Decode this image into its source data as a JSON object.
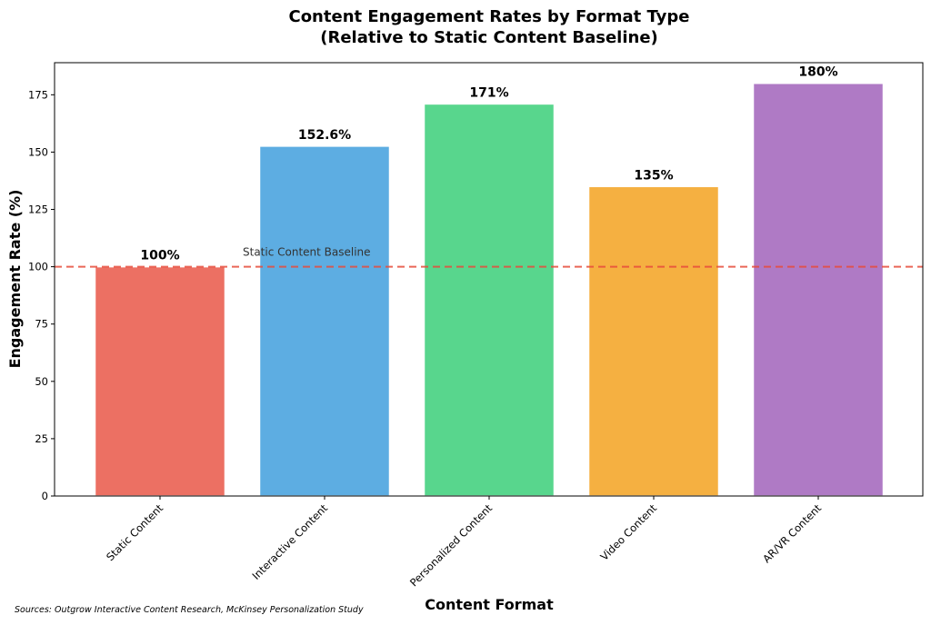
{
  "chart_data": {
    "type": "bar",
    "title": "Content Engagement Rates by Format Type",
    "subtitle": "(Relative to Static Content Baseline)",
    "xlabel": "Content Format",
    "ylabel": "Engagement Rate (%)",
    "categories": [
      "Static Content",
      "Interactive Content",
      "Personalized Content",
      "Video Content",
      "AR/VR Content"
    ],
    "values": [
      100,
      152.6,
      171,
      135,
      180
    ],
    "data_labels": [
      "100%",
      "152.6%",
      "171%",
      "135%",
      "180%"
    ],
    "colors": [
      "#ec7063",
      "#5dade2",
      "#58d68d",
      "#f5b041",
      "#af7ac5"
    ],
    "ylim": [
      0,
      189
    ],
    "yticks": [
      0,
      25,
      50,
      75,
      100,
      125,
      150,
      175
    ],
    "grid": false,
    "reference_line": {
      "value": 100,
      "label": "Static Content Baseline",
      "color": "#e74c3c",
      "style": "dashed"
    },
    "source_note": "Sources: Outgrow Interactive Content Research, McKinsey Personalization Study"
  }
}
